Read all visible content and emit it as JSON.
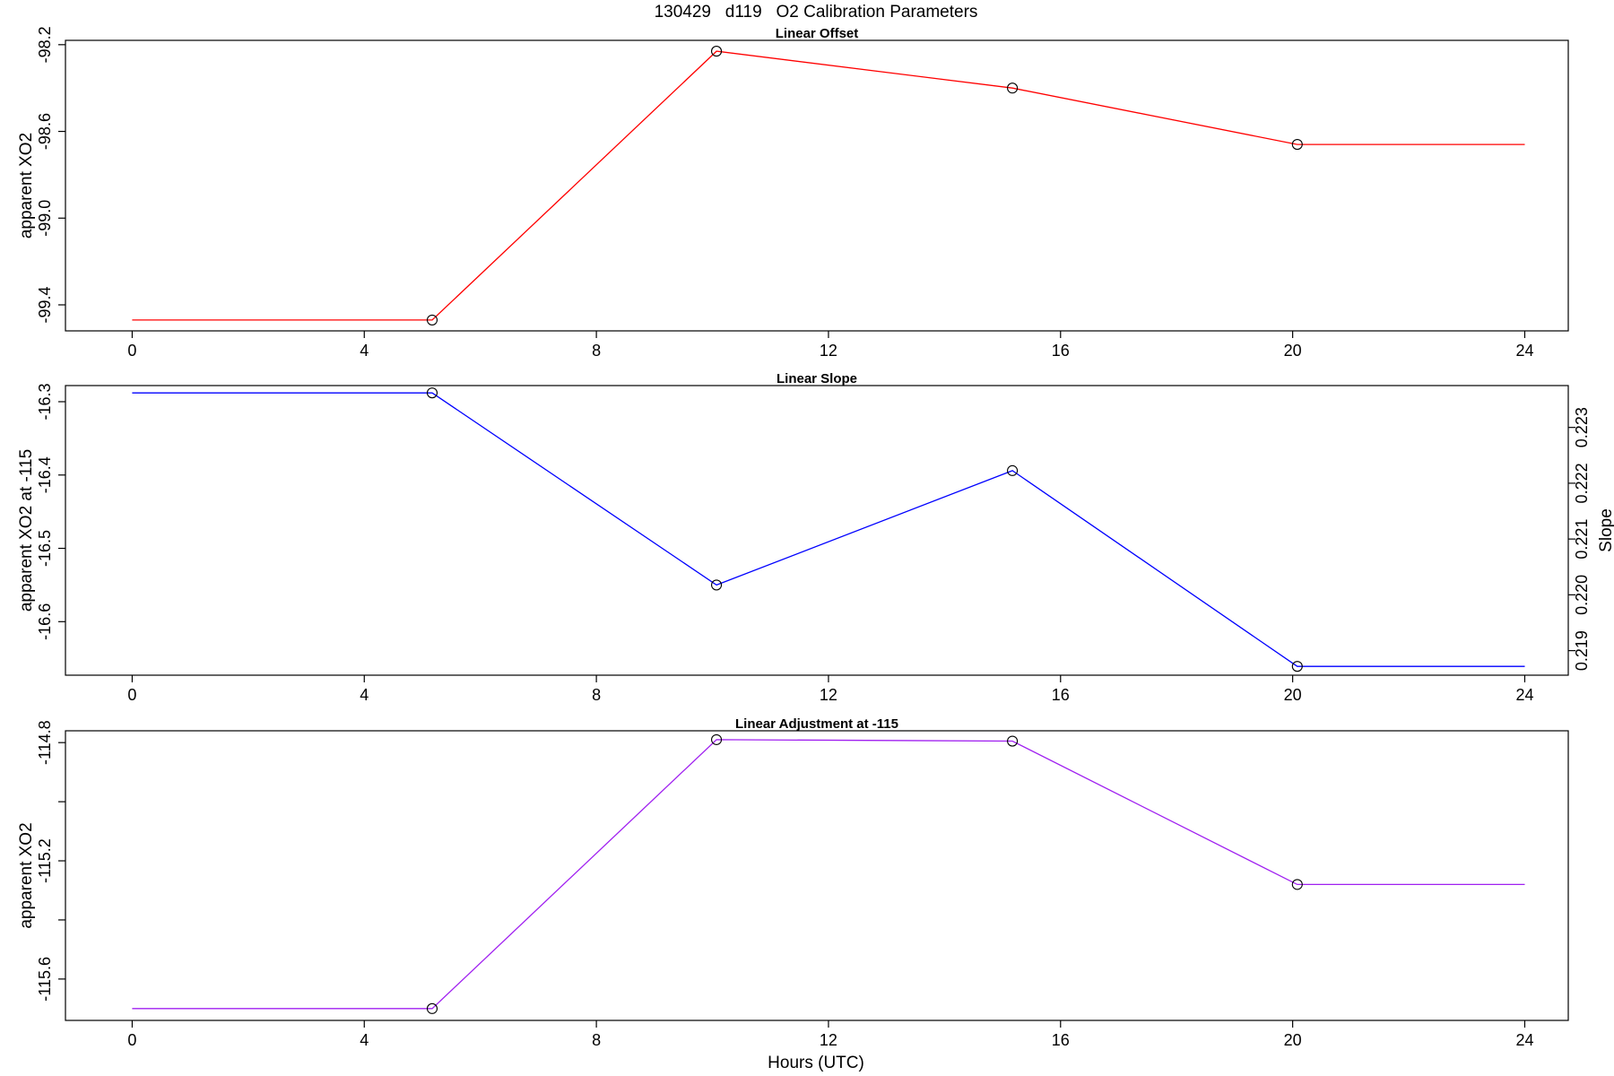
{
  "figure": {
    "title": "130429   d119   O2 Calibration Parameters",
    "xlabel": "Hours (UTC)"
  },
  "chart_data": [
    {
      "type": "line",
      "title": "Linear Offset",
      "ylabel": "apparent XO2",
      "xlim": [
        -1.15,
        24.75
      ],
      "ylim": [
        -99.52,
        -98.18
      ],
      "xticks": [
        0,
        4,
        8,
        12,
        16,
        20,
        24
      ],
      "yticks": [
        -99.4,
        -99.0,
        -98.6,
        -98.2
      ],
      "tick_labels": [
        "-99.4",
        "-99.0",
        "-98.6",
        "-98.2"
      ],
      "color": "#ff0000",
      "x": [
        0,
        5.17,
        10.07,
        15.17,
        20.08,
        24
      ],
      "values": [
        -99.47,
        -99.47,
        -98.23,
        -98.4,
        -98.66,
        -98.66
      ],
      "markers": [
        false,
        true,
        true,
        true,
        true,
        false
      ]
    },
    {
      "type": "line",
      "title": "Linear Slope",
      "ylabel": "apparent XO2 at -115",
      "right_ylabel": "Slope",
      "xlim": [
        -1.15,
        24.75
      ],
      "ylim": [
        -16.673,
        -16.278
      ],
      "xticks": [
        0,
        4,
        8,
        12,
        16,
        20,
        24
      ],
      "yticks": [
        -16.6,
        -16.5,
        -16.4,
        -16.3
      ],
      "tick_labels": [
        "-16.6",
        "-16.5",
        "-16.4",
        "-16.3"
      ],
      "right_yticks": [
        0.219,
        0.22,
        0.221,
        0.222,
        0.223
      ],
      "right_tick_labels": [
        "0.219",
        "0.220",
        "0.221",
        "0.222",
        "0.223"
      ],
      "right_ylim": [
        0.21856,
        0.22375
      ],
      "color": "#0000ff",
      "x": [
        0,
        5.17,
        10.07,
        15.17,
        20.08,
        24
      ],
      "values": [
        -16.288,
        -16.288,
        -16.55,
        -16.394,
        -16.661,
        -16.661
      ],
      "markers": [
        false,
        true,
        true,
        true,
        true,
        false
      ]
    },
    {
      "type": "line",
      "title": "Linear Adjustment at -115",
      "ylabel": "apparent XO2",
      "xlim": [
        -1.15,
        24.75
      ],
      "ylim": [
        -115.74,
        -114.76
      ],
      "xticks": [
        0,
        4,
        8,
        12,
        16,
        20,
        24
      ],
      "yticks": [
        -115.6,
        -115.2,
        -114.8
      ],
      "tick_labels": [
        "-115.6",
        "-115.2",
        "-114.8"
      ],
      "minor_yticks": [
        -115.4,
        -115.0
      ],
      "color": "#a020f0",
      "x": [
        0,
        5.17,
        10.07,
        15.17,
        20.08,
        24
      ],
      "values": [
        -115.7,
        -115.7,
        -114.79,
        -114.795,
        -115.28,
        -115.28
      ],
      "markers": [
        false,
        true,
        true,
        true,
        true,
        false
      ]
    }
  ]
}
